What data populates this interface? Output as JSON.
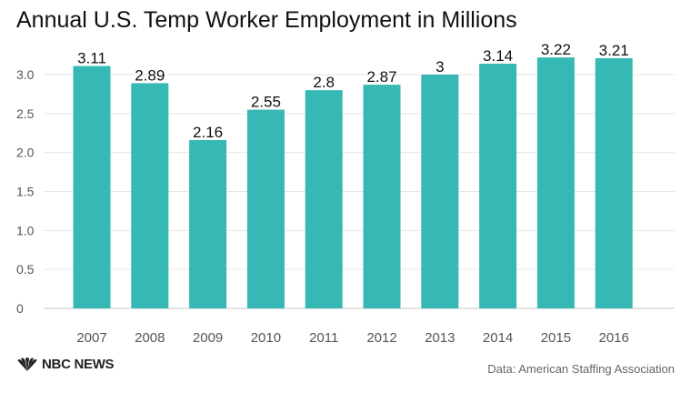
{
  "chart_data": {
    "type": "bar",
    "title": "Annual U.S. Temp Worker Employment in Millions",
    "categories": [
      "2007",
      "2008",
      "2009",
      "2010",
      "2011",
      "2012",
      "2013",
      "2014",
      "2015",
      "2016"
    ],
    "values": [
      3.11,
      2.89,
      2.16,
      2.55,
      2.8,
      2.87,
      3,
      3.14,
      3.22,
      3.21
    ],
    "value_labels": [
      "3.11",
      "2.89",
      "2.16",
      "2.55",
      "2.8",
      "2.87",
      "3",
      "3.14",
      "3.22",
      "3.21"
    ],
    "yticks": [
      0,
      0.5,
      1.0,
      1.5,
      2.0,
      2.5,
      3.0
    ],
    "ytick_labels": [
      "0",
      "0.5",
      "1.0",
      "1.5",
      "2.0",
      "2.5",
      "3.0"
    ],
    "ylim": [
      0,
      3.3
    ],
    "xlabel": "",
    "ylabel": "",
    "grid": true,
    "bar_color": "#36b8b4"
  },
  "footer": {
    "brand": "NBC NEWS",
    "logo_icon": "nbc-peacock-icon",
    "source": "Data: American Staffing Association"
  }
}
